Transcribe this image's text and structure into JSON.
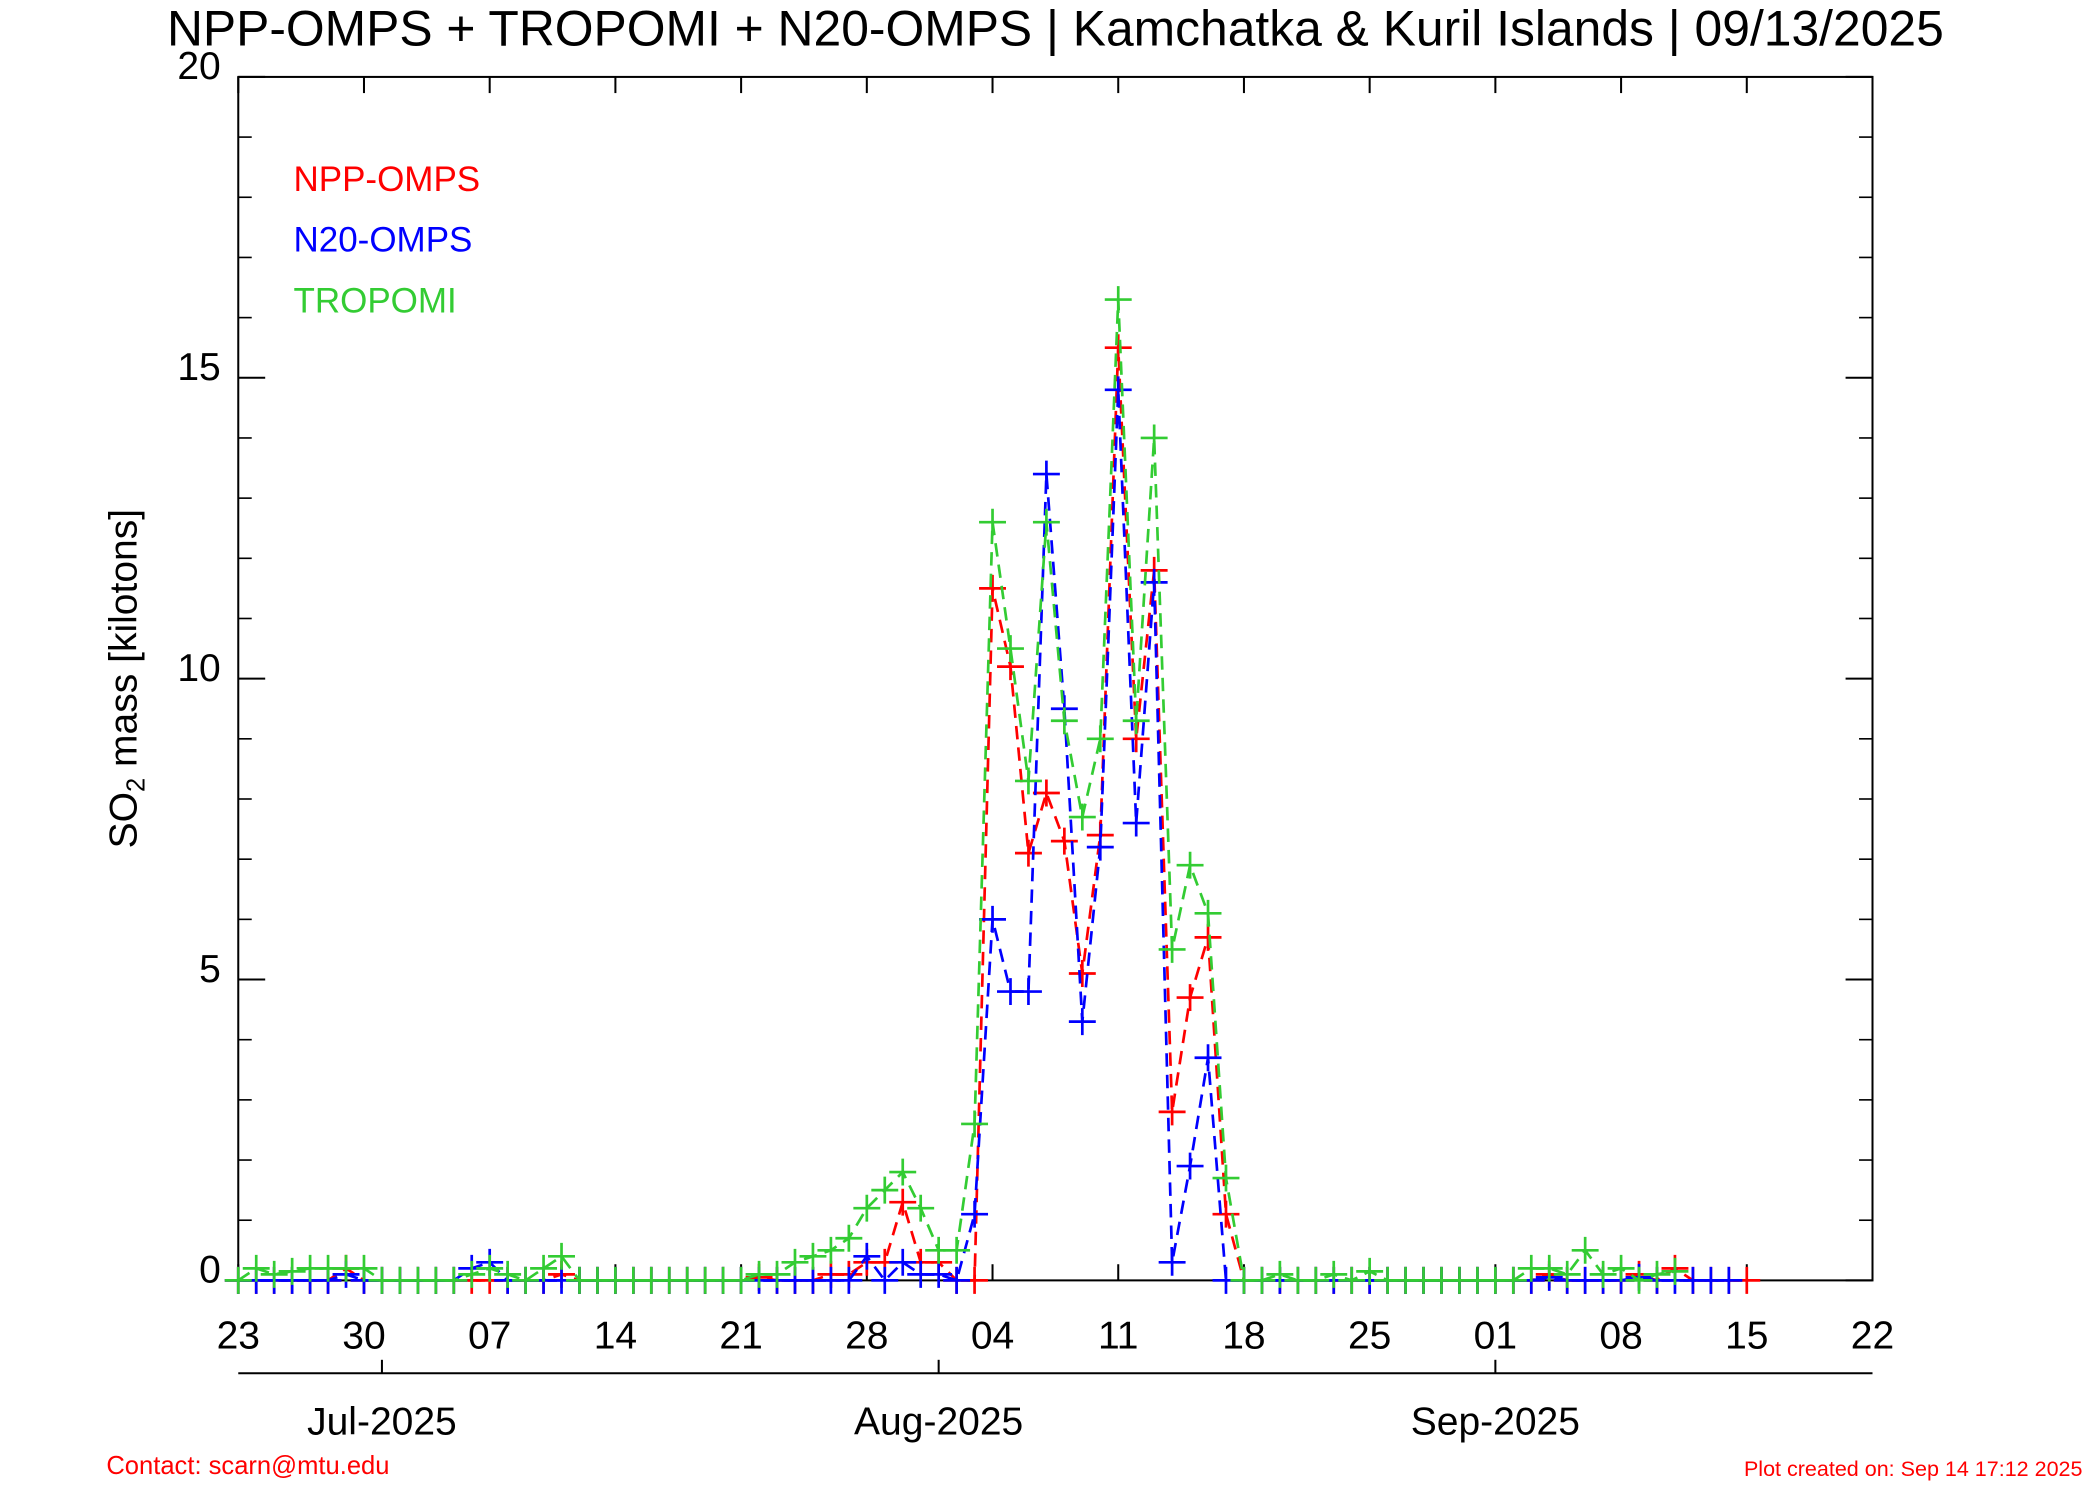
{
  "chart_data": {
    "type": "line",
    "title": "NPP-OMPS + TROPOMI + N20-OMPS | Kamchatka & Kuril Islands | 09/13/2025",
    "ylabel": {
      "text": "SO",
      "subscript": "2",
      "rest": " mass [kilotons]"
    },
    "x": [
      "2025-06-23",
      "2025-06-24",
      "2025-06-25",
      "2025-06-26",
      "2025-06-27",
      "2025-06-28",
      "2025-06-29",
      "2025-06-30",
      "2025-07-01",
      "2025-07-02",
      "2025-07-03",
      "2025-07-04",
      "2025-07-05",
      "2025-07-06",
      "2025-07-07",
      "2025-07-08",
      "2025-07-09",
      "2025-07-10",
      "2025-07-11",
      "2025-07-12",
      "2025-07-13",
      "2025-07-14",
      "2025-07-15",
      "2025-07-16",
      "2025-07-17",
      "2025-07-18",
      "2025-07-19",
      "2025-07-20",
      "2025-07-21",
      "2025-07-22",
      "2025-07-23",
      "2025-07-24",
      "2025-07-25",
      "2025-07-26",
      "2025-07-27",
      "2025-07-28",
      "2025-07-29",
      "2025-07-30",
      "2025-07-31",
      "2025-08-01",
      "2025-08-02",
      "2025-08-03",
      "2025-08-04",
      "2025-08-05",
      "2025-08-06",
      "2025-08-07",
      "2025-08-08",
      "2025-08-09",
      "2025-08-10",
      "2025-08-11",
      "2025-08-12",
      "2025-08-13",
      "2025-08-14",
      "2025-08-15",
      "2025-08-16",
      "2025-08-17",
      "2025-08-18",
      "2025-08-19",
      "2025-08-20",
      "2025-08-21",
      "2025-08-22",
      "2025-08-23",
      "2025-08-24",
      "2025-08-25",
      "2025-08-26",
      "2025-08-27",
      "2025-08-28",
      "2025-08-29",
      "2025-08-30",
      "2025-08-31",
      "2025-09-01",
      "2025-09-02",
      "2025-09-03",
      "2025-09-04",
      "2025-09-05",
      "2025-09-06",
      "2025-09-07",
      "2025-09-08",
      "2025-09-09",
      "2025-09-10",
      "2025-09-11",
      "2025-09-12",
      "2025-09-13",
      "2025-09-14",
      "2025-09-15"
    ],
    "series": [
      {
        "name": "NPP-OMPS",
        "color": "#ff0000",
        "values": [
          0,
          0,
          0,
          0,
          0,
          0,
          0.2,
          0,
          0,
          0,
          0,
          0,
          0,
          0,
          0,
          0,
          0,
          0,
          0.1,
          0,
          0,
          0,
          0,
          0,
          0,
          0,
          0,
          0,
          0,
          0.05,
          0,
          0,
          0,
          0.1,
          0.1,
          0.3,
          0.3,
          1.3,
          0.3,
          0.3,
          0,
          0,
          11.5,
          10.2,
          7.1,
          8.1,
          7.3,
          5.1,
          7.4,
          15.5,
          9.0,
          11.8,
          2.8,
          4.7,
          5.7,
          1.1,
          0,
          0,
          0,
          0,
          0,
          0,
          0,
          0,
          0,
          0,
          0,
          0,
          0,
          0,
          0,
          0,
          0,
          0.1,
          0,
          0,
          0,
          0,
          0.1,
          0,
          0.2,
          0,
          0,
          0,
          0
        ]
      },
      {
        "name": "N20-OMPS",
        "color": "#0000ff",
        "values": [
          0,
          0,
          0,
          0,
          0,
          0,
          0.1,
          0,
          0,
          0,
          0,
          0,
          0,
          0.2,
          0.3,
          0,
          0,
          0,
          0,
          0,
          0,
          0,
          0,
          0,
          0,
          0,
          0,
          0,
          0,
          0,
          0,
          0,
          0,
          0,
          0,
          0.4,
          0,
          0.3,
          0.1,
          0.1,
          0,
          1.1,
          6.0,
          4.8,
          4.8,
          13.4,
          9.5,
          4.3,
          7.2,
          14.8,
          7.6,
          11.6,
          0.3,
          1.9,
          3.7,
          0,
          0,
          0,
          0,
          0,
          0,
          0,
          0,
          0,
          0,
          0,
          0,
          0,
          0,
          0,
          0,
          0,
          0,
          0.05,
          0,
          0,
          0,
          0,
          0.05,
          0,
          0,
          0,
          0,
          0,
          null
        ]
      },
      {
        "name": "TROPOMI",
        "color": "#33cc33",
        "values": [
          0,
          0.2,
          0.1,
          0.15,
          0.2,
          0.2,
          0.2,
          0.2,
          0,
          0,
          0,
          0,
          0,
          0.1,
          0.2,
          0.1,
          0,
          0.2,
          0.4,
          0,
          0,
          0,
          0,
          0,
          0,
          0,
          0,
          0,
          0,
          0.1,
          0.1,
          0.3,
          0.4,
          0.5,
          0.7,
          1.2,
          1.5,
          1.8,
          1.2,
          0.5,
          0.5,
          2.6,
          12.6,
          10.5,
          8.3,
          12.6,
          9.3,
          7.7,
          9.0,
          16.3,
          9.3,
          14.0,
          5.5,
          6.9,
          6.1,
          1.7,
          0,
          0,
          0.1,
          0,
          0,
          0.1,
          0,
          0.15,
          0,
          0,
          0,
          0,
          0,
          0,
          0,
          0,
          0.2,
          0.2,
          0.1,
          0.5,
          0.1,
          0.2,
          0,
          0.1,
          0.15,
          null,
          null,
          null,
          null
        ]
      }
    ],
    "xlim": [
      "2025-06-23",
      "2025-09-22"
    ],
    "xticks": [
      {
        "value": "2025-06-23",
        "label": "23"
      },
      {
        "value": "2025-06-30",
        "label": "30"
      },
      {
        "value": "2025-07-07",
        "label": "07"
      },
      {
        "value": "2025-07-14",
        "label": "14"
      },
      {
        "value": "2025-07-21",
        "label": "21"
      },
      {
        "value": "2025-07-28",
        "label": "28"
      },
      {
        "value": "2025-08-04",
        "label": "04"
      },
      {
        "value": "2025-08-11",
        "label": "11"
      },
      {
        "value": "2025-08-18",
        "label": "18"
      },
      {
        "value": "2025-08-25",
        "label": "25"
      },
      {
        "value": "2025-09-01",
        "label": "01"
      },
      {
        "value": "2025-09-08",
        "label": "08"
      },
      {
        "value": "2025-09-15",
        "label": "15"
      },
      {
        "value": "2025-09-22",
        "label": "22"
      }
    ],
    "month_ticks": [
      {
        "value": "2025-07-01",
        "label": "Jul-2025"
      },
      {
        "value": "2025-08-01",
        "label": "Aug-2025"
      },
      {
        "value": "2025-09-01",
        "label": "Sep-2025"
      }
    ],
    "ylim": [
      0,
      20
    ],
    "yticks": [
      0,
      5,
      10,
      15,
      20
    ],
    "legend": "top-left",
    "contact": "Contact: scarn@mtu.edu",
    "created": "Plot created on: Sep 14 17:12 2025"
  }
}
